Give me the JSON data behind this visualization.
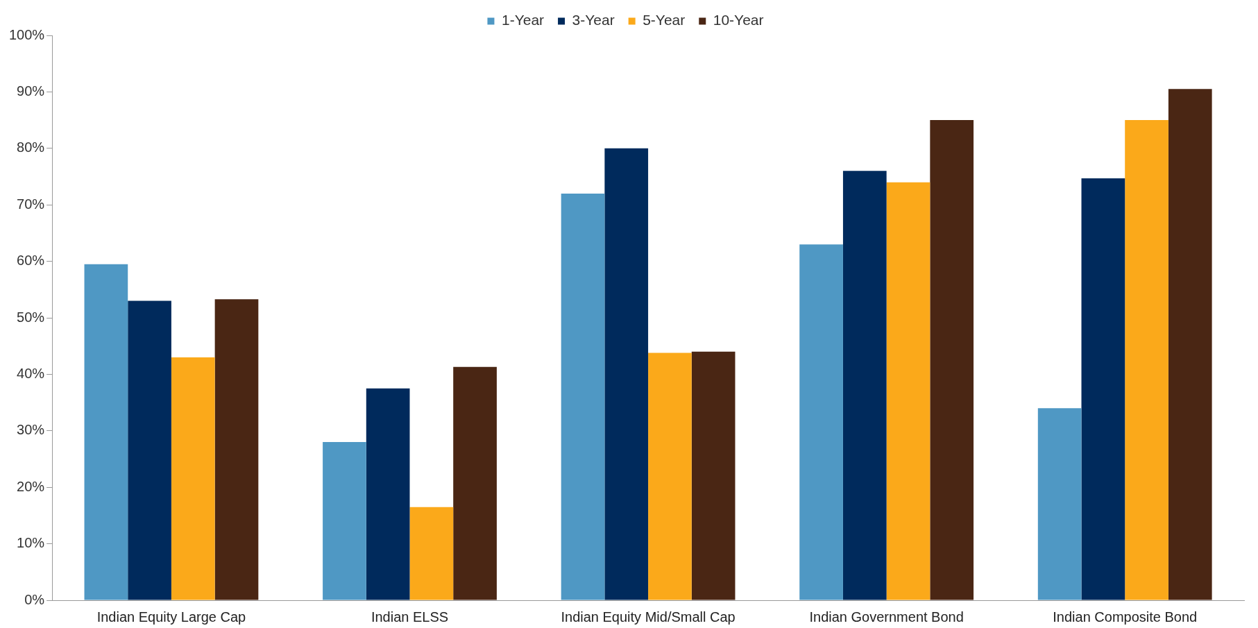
{
  "chart_data": {
    "type": "bar",
    "categories": [
      "Indian Equity Large Cap",
      "Indian ELSS",
      "Indian Equity Mid/Small Cap",
      "Indian Government Bond",
      "Indian Composite Bond"
    ],
    "series": [
      {
        "name": "1-Year",
        "color": "#4f98c4",
        "values": [
          59.5,
          28,
          72,
          63,
          34
        ]
      },
      {
        "name": "3-Year",
        "color": "#002a5c",
        "values": [
          53,
          37.5,
          80,
          76,
          74.7
        ]
      },
      {
        "name": "5-Year",
        "color": "#fba91a",
        "values": [
          43,
          16.5,
          43.8,
          74,
          85
        ]
      },
      {
        "name": "10-Year",
        "color": "#4a2614",
        "values": [
          53.3,
          41.3,
          44,
          85,
          90.5
        ]
      }
    ],
    "ylim": [
      0,
      100
    ],
    "yticks": [
      {
        "value": 0,
        "label": "0%"
      },
      {
        "value": 10,
        "label": "10%"
      },
      {
        "value": 20,
        "label": "20%"
      },
      {
        "value": 30,
        "label": "30%"
      },
      {
        "value": 40,
        "label": "40%"
      },
      {
        "value": 50,
        "label": "50%"
      },
      {
        "value": 60,
        "label": "60%"
      },
      {
        "value": 70,
        "label": "70%"
      },
      {
        "value": 80,
        "label": "80%"
      },
      {
        "value": 90,
        "label": "90%"
      },
      {
        "value": 100,
        "label": "100%"
      }
    ],
    "grid": false,
    "legend": "top"
  }
}
